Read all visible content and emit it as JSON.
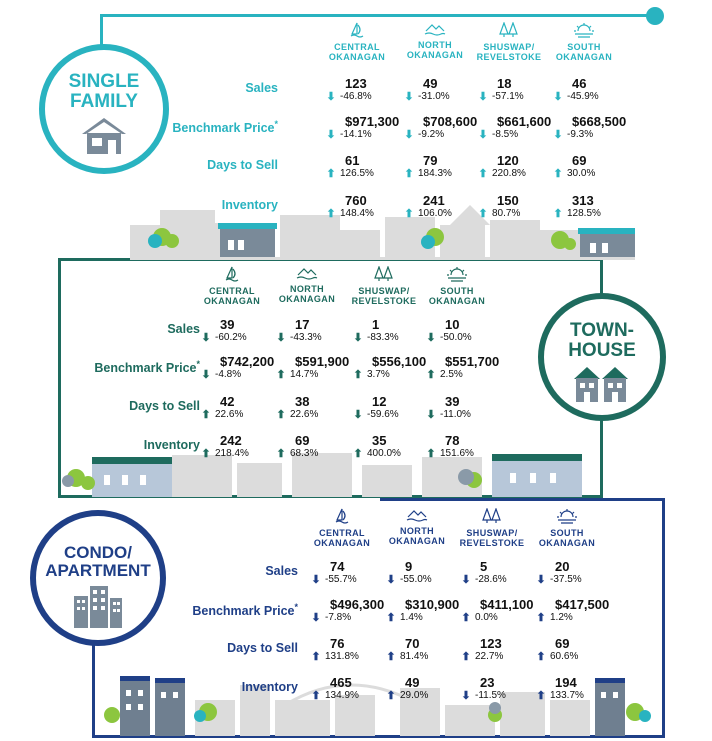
{
  "regions": [
    {
      "key": "central",
      "line1": "CENTRAL",
      "line2": "OKANAGAN"
    },
    {
      "key": "north",
      "line1": "NORTH",
      "line2": "OKANAGAN"
    },
    {
      "key": "shuswap",
      "line1": "SHUSWAP/",
      "line2": "REVELSTOKE"
    },
    {
      "key": "south",
      "line1": "SOUTH",
      "line2": "OKANAGAN"
    }
  ],
  "colors": {
    "single": "#29b3c0",
    "town": "#1e6b5e",
    "condo": "#1f3f87",
    "skyline": "#d9d9d9"
  },
  "sections": [
    {
      "id": "single-family",
      "title_line1": "SINGLE",
      "title_line2": "FAMILY",
      "rows": [
        {
          "label": "Sales",
          "cells": [
            {
              "v": "123",
              "c": "-46.8%",
              "d": "down"
            },
            {
              "v": "49",
              "c": "-31.0%",
              "d": "down"
            },
            {
              "v": "18",
              "c": "-57.1%",
              "d": "down"
            },
            {
              "v": "46",
              "c": "-45.9%",
              "d": "down"
            }
          ]
        },
        {
          "label": "Benchmark Price",
          "star": "*",
          "cells": [
            {
              "v": "$971,300",
              "c": "-14.1%",
              "d": "down"
            },
            {
              "v": "$708,600",
              "c": "-9.2%",
              "d": "down"
            },
            {
              "v": "$661,600",
              "c": "-8.5%",
              "d": "down"
            },
            {
              "v": "$668,500",
              "c": "-9.3%",
              "d": "down"
            }
          ]
        },
        {
          "label": "Days to Sell",
          "cells": [
            {
              "v": "61",
              "c": "126.5%",
              "d": "up"
            },
            {
              "v": "79",
              "c": "184.3%",
              "d": "up"
            },
            {
              "v": "120",
              "c": "220.8%",
              "d": "up"
            },
            {
              "v": "69",
              "c": "30.0%",
              "d": "up"
            }
          ]
        },
        {
          "label": "Inventory",
          "cells": [
            {
              "v": "760",
              "c": "148.4%",
              "d": "up"
            },
            {
              "v": "241",
              "c": "106.0%",
              "d": "up"
            },
            {
              "v": "150",
              "c": "80.7%",
              "d": "up"
            },
            {
              "v": "313",
              "c": "128.5%",
              "d": "up"
            }
          ]
        }
      ]
    },
    {
      "id": "townhouse",
      "title_line1": "TOWN-",
      "title_line2": "HOUSE",
      "rows": [
        {
          "label": "Sales",
          "cells": [
            {
              "v": "39",
              "c": "-60.2%",
              "d": "down"
            },
            {
              "v": "17",
              "c": "-43.3%",
              "d": "down"
            },
            {
              "v": "1",
              "c": "-83.3%",
              "d": "down"
            },
            {
              "v": "10",
              "c": "-50.0%",
              "d": "down"
            }
          ]
        },
        {
          "label": "Benchmark Price",
          "star": "*",
          "cells": [
            {
              "v": "$742,200",
              "c": "-4.8%",
              "d": "down"
            },
            {
              "v": "$591,900",
              "c": "14.7%",
              "d": "up"
            },
            {
              "v": "$556,100",
              "c": "3.7%",
              "d": "up"
            },
            {
              "v": "$551,700",
              "c": "2.5%",
              "d": "up"
            }
          ]
        },
        {
          "label": "Days to Sell",
          "cells": [
            {
              "v": "42",
              "c": "22.6%",
              "d": "up"
            },
            {
              "v": "38",
              "c": "22.6%",
              "d": "up"
            },
            {
              "v": "12",
              "c": "-59.6%",
              "d": "down"
            },
            {
              "v": "39",
              "c": "-11.0%",
              "d": "down"
            }
          ]
        },
        {
          "label": "Inventory",
          "cells": [
            {
              "v": "242",
              "c": "218.4%",
              "d": "up"
            },
            {
              "v": "69",
              "c": "68.3%",
              "d": "up"
            },
            {
              "v": "35",
              "c": "400.0%",
              "d": "up"
            },
            {
              "v": "78",
              "c": "151.6%",
              "d": "up"
            }
          ]
        }
      ]
    },
    {
      "id": "condo-apartment",
      "title_line1": "CONDO/",
      "title_line2": "APARTMENT",
      "rows": [
        {
          "label": "Sales",
          "cells": [
            {
              "v": "74",
              "c": "-55.7%",
              "d": "down"
            },
            {
              "v": "9",
              "c": "-55.0%",
              "d": "down"
            },
            {
              "v": "5",
              "c": "-28.6%",
              "d": "down"
            },
            {
              "v": "20",
              "c": "-37.5%",
              "d": "down"
            }
          ]
        },
        {
          "label": "Benchmark Price",
          "star": "*",
          "cells": [
            {
              "v": "$496,300",
              "c": "-7.8%",
              "d": "down"
            },
            {
              "v": "$310,900",
              "c": "1.4%",
              "d": "up"
            },
            {
              "v": "$411,100",
              "c": "0.0%",
              "d": "up"
            },
            {
              "v": "$417,500",
              "c": "1.2%",
              "d": "up"
            }
          ]
        },
        {
          "label": "Days to Sell",
          "cells": [
            {
              "v": "76",
              "c": "131.8%",
              "d": "up"
            },
            {
              "v": "70",
              "c": "81.4%",
              "d": "up"
            },
            {
              "v": "123",
              "c": "22.7%",
              "d": "up"
            },
            {
              "v": "69",
              "c": "60.6%",
              "d": "up"
            }
          ]
        },
        {
          "label": "Inventory",
          "cells": [
            {
              "v": "465",
              "c": "134.9%",
              "d": "up"
            },
            {
              "v": "49",
              "c": "29.0%",
              "d": "up"
            },
            {
              "v": "23",
              "c": "-11.5%",
              "d": "down"
            },
            {
              "v": "194",
              "c": "133.7%",
              "d": "up"
            }
          ]
        }
      ]
    }
  ],
  "icons": {
    "central": "sailboat-icon",
    "north": "mountain-waves-icon",
    "shuswap": "trees-icon",
    "south": "sunset-icon",
    "single": "house-icon",
    "town": "townhouses-icon",
    "condo": "apartment-building-icon"
  }
}
